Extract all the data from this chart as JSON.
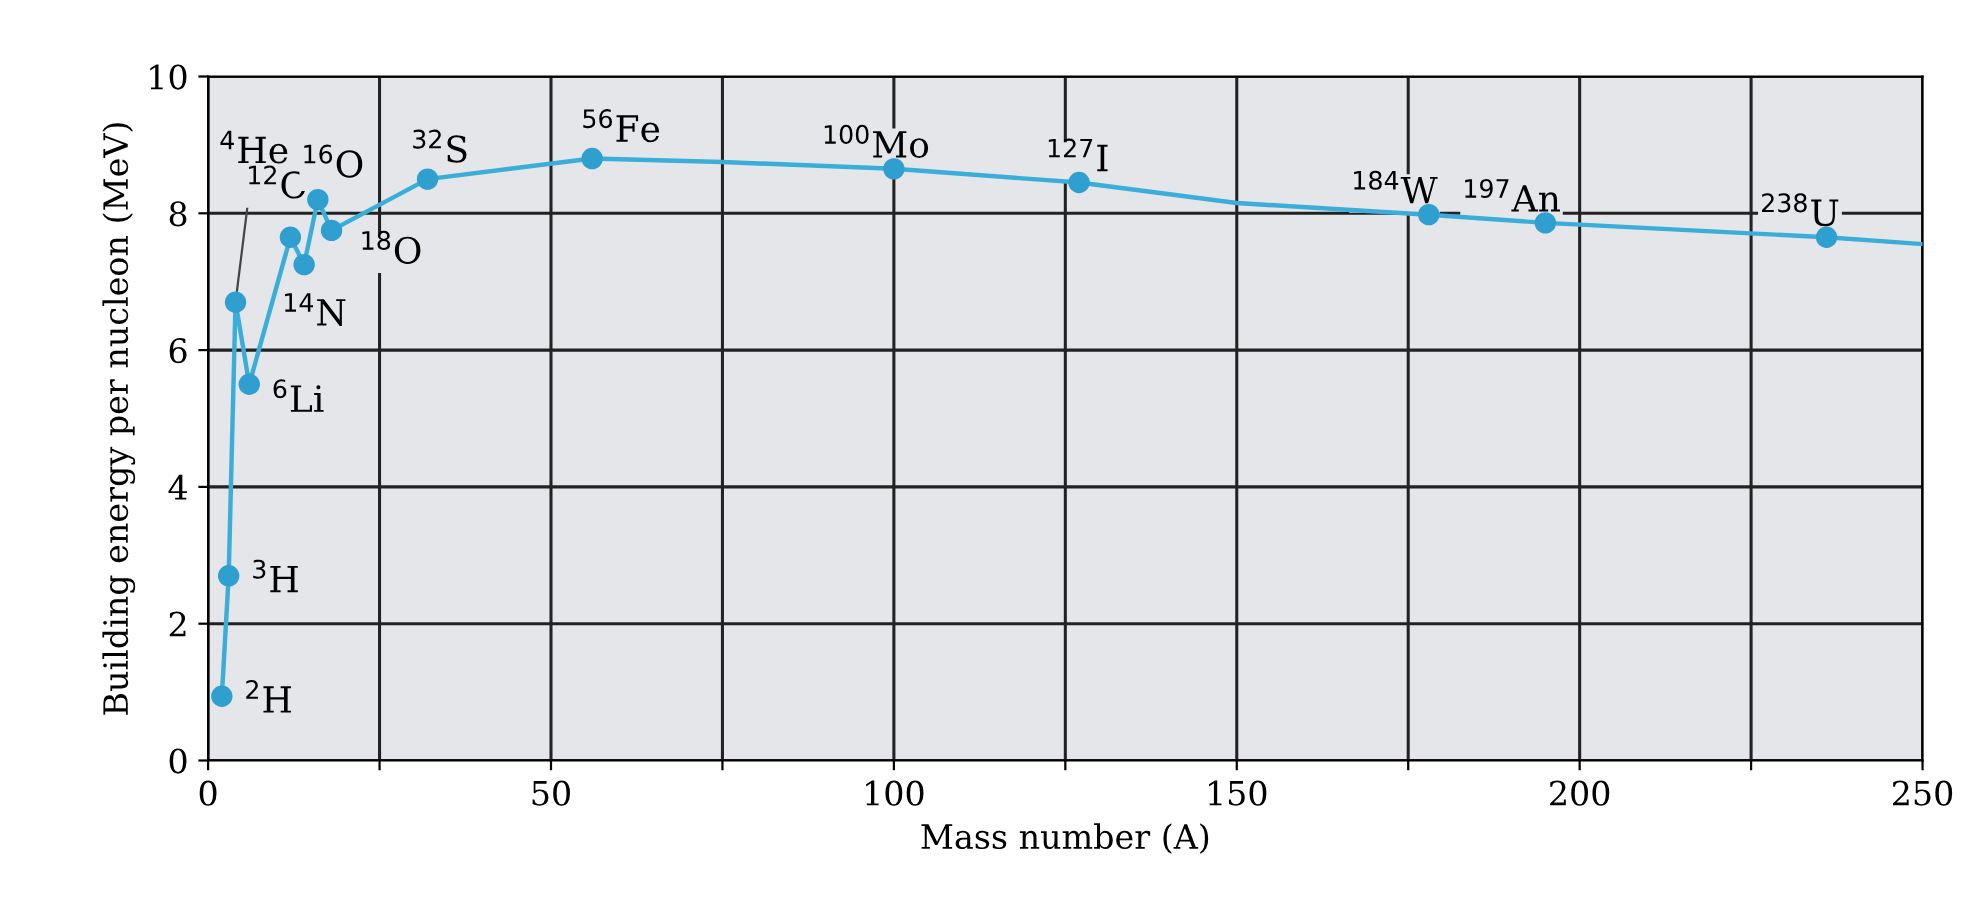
{
  "chart_data": {
    "type": "line",
    "xlabel": "Mass number (A)",
    "ylabel": "Building energy per nucleon (MeV)",
    "series": [
      {
        "color": "#3aaed8",
        "marker": "none",
        "x": [
          2,
          3,
          4,
          6,
          12,
          14,
          16,
          18,
          32,
          56,
          75,
          100,
          127,
          150,
          178,
          195,
          236,
          250
        ],
        "values": [
          0.94,
          2.7,
          6.7,
          5.5,
          7.65,
          7.25,
          8.2,
          7.75,
          8.5,
          8.8,
          8.75,
          8.65,
          8.45,
          8.15,
          7.98,
          7.86,
          7.65,
          7.55
        ]
      },
      {
        "type": "scatter",
        "color": "#2f9fd0",
        "marker": "circle",
        "x": [
          2,
          3,
          4,
          6,
          12,
          14,
          16,
          18,
          32,
          56,
          100,
          127,
          178,
          195,
          236
        ],
        "values": [
          0.94,
          2.7,
          6.7,
          5.5,
          7.65,
          7.25,
          8.2,
          7.75,
          8.5,
          8.8,
          8.65,
          8.45,
          7.98,
          7.86,
          7.65
        ]
      }
    ],
    "annotations": [
      {
        "text": "$^{2}$H",
        "x": 2,
        "y": 0.94
      },
      {
        "text": "$^{3}$H",
        "x": 3,
        "y": 2.7
      },
      {
        "text": "$^{4}$He",
        "x": 4,
        "y": 6.7
      },
      {
        "text": "$^{6}$Li",
        "x": 6,
        "y": 5.5
      },
      {
        "text": "$^{12}$C",
        "x": 12,
        "y": 7.65
      },
      {
        "text": "$^{14}$N",
        "x": 14,
        "y": 7.25
      },
      {
        "text": "$^{16}$O",
        "x": 16,
        "y": 8.2
      },
      {
        "text": "$^{18}$O",
        "x": 18,
        "y": 7.75
      },
      {
        "text": "$^{32}$S",
        "x": 32,
        "y": 8.5
      },
      {
        "text": "$^{56}$Fe",
        "x": 56,
        "y": 8.8
      },
      {
        "text": "$^{100}$Mo",
        "x": 100,
        "y": 8.65
      },
      {
        "text": "$^{127}$I",
        "x": 127,
        "y": 8.45
      },
      {
        "text": "$^{184}$W",
        "x": 178,
        "y": 7.98
      },
      {
        "text": "$^{197}$An",
        "x": 195,
        "y": 7.86
      },
      {
        "text": "$^{238}$U",
        "x": 236,
        "y": 7.65
      }
    ],
    "xlim": [
      0,
      250
    ],
    "ylim": [
      0,
      10
    ],
    "xticks": [
      0,
      {
        "value": 25,
        "label": null
      },
      50,
      {
        "value": 75,
        "label": null
      },
      100,
      {
        "value": 125,
        "label": null
      },
      150,
      {
        "value": 175,
        "label": null
      },
      200,
      {
        "value": 225,
        "label": null
      },
      250
    ],
    "yticks": [
      0,
      2,
      4,
      6,
      8,
      10
    ],
    "grid": true
  }
}
